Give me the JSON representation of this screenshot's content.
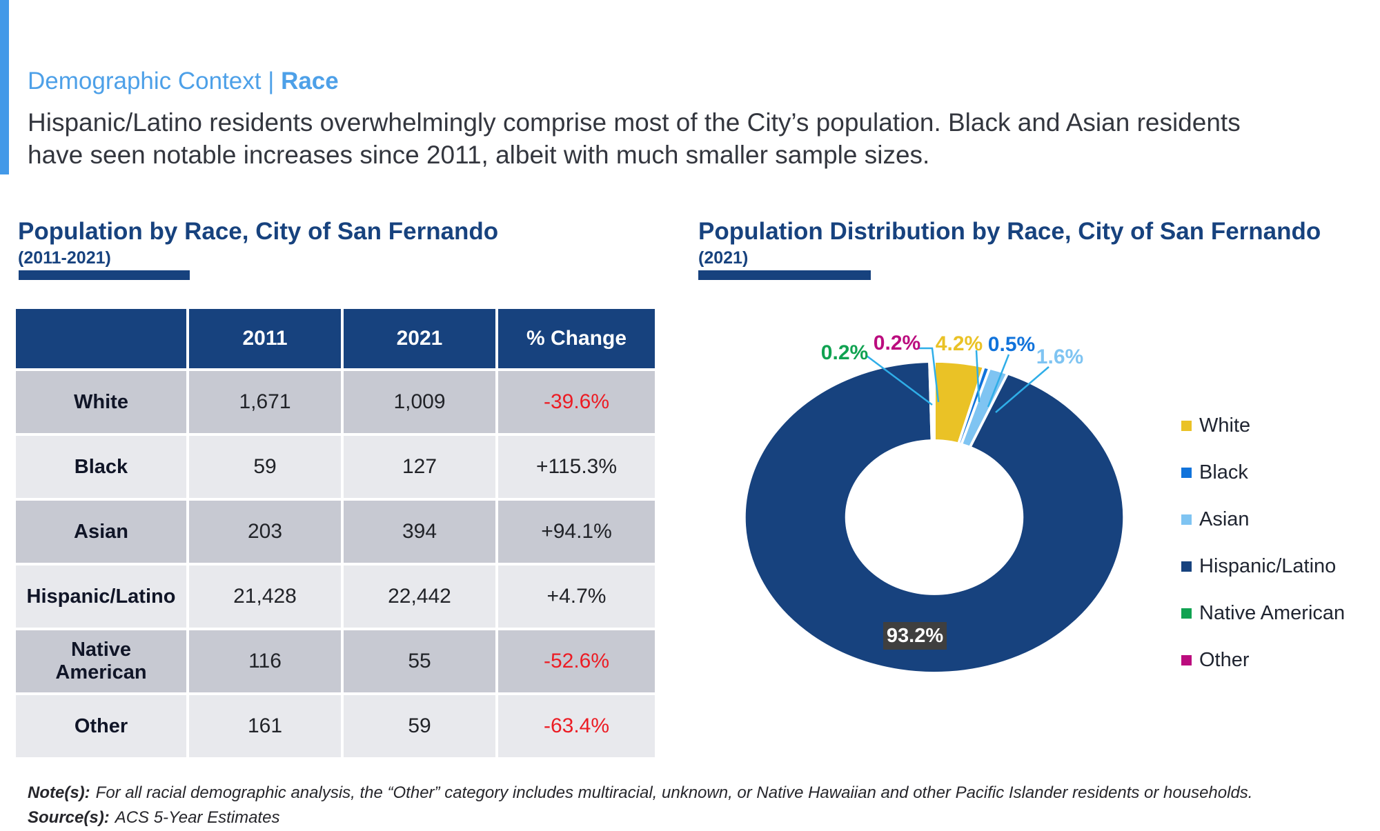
{
  "page": {
    "section_title": "Demographic Context",
    "divider": "| ",
    "page_title": "Race",
    "subtitle_line1": "Hispanic/Latino residents overwhelmingly comprise most of the City’s population. Black and Asian residents",
    "subtitle_line2": "have seen notable increases since 2011, albeit with much smaller sample sizes."
  },
  "left_section": {
    "title": "Population by Race, City of San Fernando",
    "subtitle": "(2011-2021)",
    "table": {
      "columns": [
        "",
        "2011",
        "2021",
        "% Change"
      ],
      "rows": [
        {
          "race": "White",
          "y2011": "1,671",
          "y2021": "1,009",
          "change": "-39.6%"
        },
        {
          "race": "Black",
          "y2011": "59",
          "y2021": "127",
          "change": "+115.3%"
        },
        {
          "race": "Asian",
          "y2011": "203",
          "y2021": "394",
          "change": "+94.1%"
        },
        {
          "race": "Hispanic/Latino",
          "y2011": "21,428",
          "y2021": "22,442",
          "change": "+4.7%"
        },
        {
          "race": "Native\nAmerican",
          "y2011": "116",
          "y2021": "55",
          "change": "-52.6%"
        },
        {
          "race": "Other",
          "y2011": "161",
          "y2021": "59",
          "change": "-63.4%"
        }
      ]
    }
  },
  "right_section": {
    "title": "Population Distribution by Race, City of San Fernando",
    "subtitle": "(2021)"
  },
  "chart_data": {
    "type": "pie",
    "title": "Population Distribution by Race, City of San Fernando",
    "subtitle": "(2021)",
    "donut": true,
    "hole_ratio": 0.47,
    "start_angle_deg": 0,
    "clockwise": true,
    "legend_position": "right",
    "categories": [
      "White",
      "Black",
      "Asian",
      "Hispanic/Latino",
      "Native American",
      "Other"
    ],
    "values": [
      4.2,
      0.5,
      1.6,
      93.2,
      0.2,
      0.2
    ],
    "slices": [
      {
        "label": "White",
        "value": 4.2,
        "display": "4.2%",
        "color": "#EAC226"
      },
      {
        "label": "Black",
        "value": 0.5,
        "display": "0.5%",
        "color": "#1173DB"
      },
      {
        "label": "Asian",
        "value": 1.6,
        "display": "1.6%",
        "color": "#7FC4F2"
      },
      {
        "label": "Hispanic/Latino",
        "value": 93.2,
        "display": "93.2%",
        "color": "#17427E"
      },
      {
        "label": "Native American",
        "value": 0.2,
        "display": "0.2%",
        "color": "#10A251"
      },
      {
        "label": "Other",
        "value": 0.2,
        "display": "0.2%",
        "color": "#BB0C7E"
      }
    ]
  },
  "notes": {
    "note_label": "Note(s):",
    "note_text": "For all racial demographic analysis, the “Other” category includes multiracial, unknown, or Native Hawaiian and other Pacific Islander residents or households.",
    "source_label": "Source(s):",
    "source_text": "ACS 5-Year Estimates"
  },
  "colors": {
    "accent_light_blue": "#4399E8",
    "title_light_blue": "#4DA0E8",
    "brand_navy": "#17427E",
    "negative_red": "#EC1C24",
    "row_dark_gray": "#C7C9D2",
    "row_light_gray": "#E8E9ED",
    "leader_line_blue": "#2FAEE8",
    "pct_box_gray": "#3F3F3F"
  }
}
